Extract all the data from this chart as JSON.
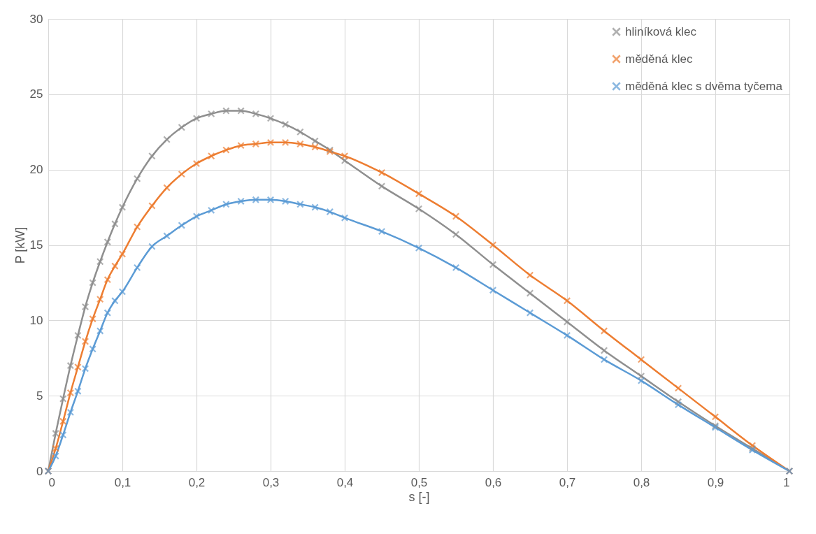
{
  "chart_data": {
    "type": "line",
    "xlabel": "s [-]",
    "ylabel": "P [kW]",
    "x": [
      0,
      0.01,
      0.02,
      0.03,
      0.04,
      0.05,
      0.06,
      0.07,
      0.08,
      0.09,
      0.1,
      0.12,
      0.14,
      0.16,
      0.18,
      0.2,
      0.22,
      0.24,
      0.26,
      0.28,
      0.3,
      0.32,
      0.34,
      0.36,
      0.38,
      0.4,
      0.45,
      0.5,
      0.55,
      0.6,
      0.65,
      0.7,
      0.75,
      0.8,
      0.85,
      0.9,
      0.95,
      1
    ],
    "series": [
      {
        "name": "hliníková klec",
        "color": "#8f8f8f",
        "values": [
          0,
          2.5,
          4.8,
          7,
          9,
          10.9,
          12.5,
          13.9,
          15.2,
          16.4,
          17.5,
          19.4,
          20.9,
          22,
          22.8,
          23.4,
          23.7,
          23.9,
          23.9,
          23.7,
          23.4,
          23,
          22.5,
          21.9,
          21.3,
          20.6,
          18.9,
          17.4,
          15.7,
          13.7,
          11.8,
          9.9,
          8,
          6.3,
          4.6,
          3,
          1.5,
          0
        ]
      },
      {
        "name": "měděná klec",
        "color": "#ed7d31",
        "values": [
          0,
          1.5,
          3.3,
          5.2,
          6.9,
          8.6,
          10.1,
          11.4,
          12.7,
          13.6,
          14.4,
          16.2,
          17.6,
          18.8,
          19.7,
          20.4,
          20.9,
          21.3,
          21.6,
          21.7,
          21.8,
          21.8,
          21.7,
          21.5,
          21.2,
          20.9,
          19.8,
          18.4,
          16.9,
          15,
          13,
          11.3,
          9.3,
          7.4,
          5.5,
          3.6,
          1.7,
          0
        ]
      },
      {
        "name": "měděná klec s dvěma tyčema",
        "color": "#5b9bd5",
        "values": [
          0,
          1,
          2.4,
          3.9,
          5.3,
          6.8,
          8.1,
          9.3,
          10.5,
          11.3,
          11.9,
          13.5,
          14.9,
          15.6,
          16.3,
          16.9,
          17.3,
          17.7,
          17.9,
          18,
          18,
          17.9,
          17.7,
          17.5,
          17.2,
          16.8,
          15.9,
          14.8,
          13.5,
          12,
          10.5,
          9,
          7.4,
          6,
          4.4,
          2.9,
          1.4,
          0
        ]
      }
    ],
    "xlim": [
      0,
      1
    ],
    "xticks": [
      0,
      {
        "value": 0.1,
        "label": "0,1"
      },
      {
        "value": 0.2,
        "label": "0,2"
      },
      {
        "value": 0.3,
        "label": "0,3"
      },
      {
        "value": 0.4,
        "label": "0,4"
      },
      {
        "value": 0.5,
        "label": "0,5"
      },
      {
        "value": 0.6,
        "label": "0,6"
      },
      {
        "value": 0.7,
        "label": "0,7"
      },
      {
        "value": 0.8,
        "label": "0,8"
      },
      {
        "value": 0.9,
        "label": "0,9"
      },
      1
    ],
    "ylim": [
      0,
      30
    ],
    "yticks": [
      0,
      5,
      10,
      15,
      20,
      25,
      30
    ],
    "grid": true,
    "legend": "top right",
    "marker": "cross",
    "line_style": "solid"
  }
}
